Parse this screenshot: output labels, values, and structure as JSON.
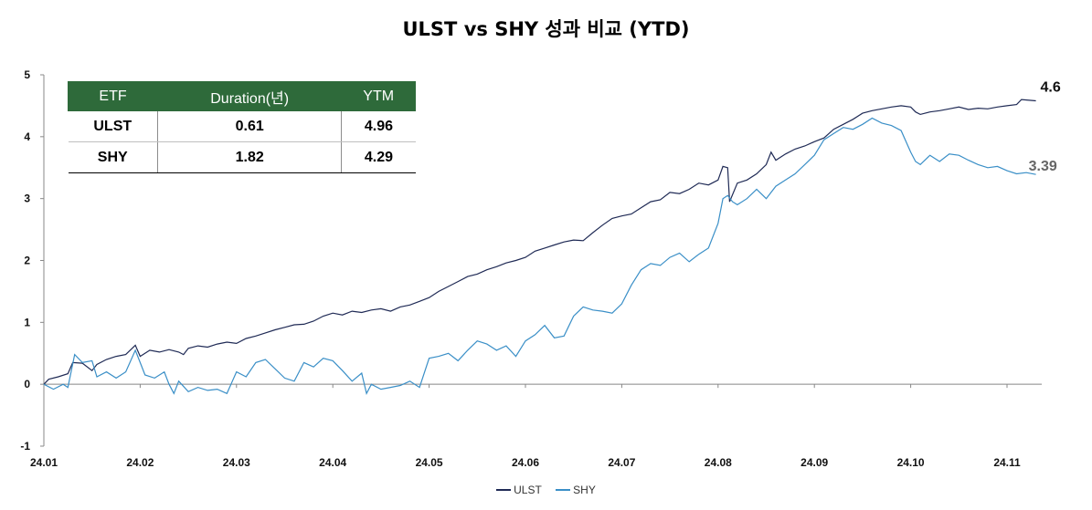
{
  "chart_data": {
    "type": "line",
    "title": "ULST vs SHY 성과 비교 (YTD)",
    "xlabel": "",
    "ylabel": "",
    "ylim": [
      -1,
      5
    ],
    "yticks": [
      "-1",
      "0",
      "1",
      "2",
      "3",
      "4",
      "5"
    ],
    "xticks": [
      "24.01",
      "24.02",
      "24.03",
      "24.04",
      "24.05",
      "24.06",
      "24.07",
      "24.08",
      "24.09",
      "24.10",
      "24.11"
    ],
    "series": [
      {
        "name": "ULST",
        "color": "#1f2a55",
        "end_label": "4.6",
        "points": [
          [
            0.0,
            0.0
          ],
          [
            0.05,
            0.08
          ],
          [
            0.15,
            0.12
          ],
          [
            0.25,
            0.17
          ],
          [
            0.3,
            0.35
          ],
          [
            0.4,
            0.34
          ],
          [
            0.5,
            0.22
          ],
          [
            0.55,
            0.32
          ],
          [
            0.65,
            0.4
          ],
          [
            0.75,
            0.45
          ],
          [
            0.85,
            0.48
          ],
          [
            0.95,
            0.63
          ],
          [
            1.0,
            0.45
          ],
          [
            1.1,
            0.55
          ],
          [
            1.2,
            0.52
          ],
          [
            1.3,
            0.56
          ],
          [
            1.4,
            0.52
          ],
          [
            1.45,
            0.48
          ],
          [
            1.5,
            0.58
          ],
          [
            1.6,
            0.62
          ],
          [
            1.7,
            0.6
          ],
          [
            1.8,
            0.65
          ],
          [
            1.9,
            0.68
          ],
          [
            2.0,
            0.66
          ],
          [
            2.1,
            0.74
          ],
          [
            2.2,
            0.78
          ],
          [
            2.3,
            0.83
          ],
          [
            2.4,
            0.88
          ],
          [
            2.5,
            0.92
          ],
          [
            2.6,
            0.96
          ],
          [
            2.7,
            0.97
          ],
          [
            2.8,
            1.02
          ],
          [
            2.9,
            1.1
          ],
          [
            3.0,
            1.15
          ],
          [
            3.1,
            1.12
          ],
          [
            3.2,
            1.18
          ],
          [
            3.3,
            1.16
          ],
          [
            3.4,
            1.2
          ],
          [
            3.5,
            1.22
          ],
          [
            3.6,
            1.18
          ],
          [
            3.7,
            1.25
          ],
          [
            3.8,
            1.28
          ],
          [
            3.9,
            1.34
          ],
          [
            4.0,
            1.4
          ],
          [
            4.1,
            1.5
          ],
          [
            4.2,
            1.58
          ],
          [
            4.3,
            1.66
          ],
          [
            4.4,
            1.74
          ],
          [
            4.5,
            1.78
          ],
          [
            4.6,
            1.85
          ],
          [
            4.7,
            1.9
          ],
          [
            4.8,
            1.96
          ],
          [
            4.9,
            2.0
          ],
          [
            5.0,
            2.05
          ],
          [
            5.1,
            2.15
          ],
          [
            5.2,
            2.2
          ],
          [
            5.3,
            2.25
          ],
          [
            5.4,
            2.3
          ],
          [
            5.5,
            2.33
          ],
          [
            5.6,
            2.32
          ],
          [
            5.7,
            2.45
          ],
          [
            5.8,
            2.57
          ],
          [
            5.9,
            2.68
          ],
          [
            6.0,
            2.72
          ],
          [
            6.1,
            2.75
          ],
          [
            6.2,
            2.85
          ],
          [
            6.3,
            2.95
          ],
          [
            6.4,
            2.98
          ],
          [
            6.5,
            3.1
          ],
          [
            6.6,
            3.08
          ],
          [
            6.7,
            3.15
          ],
          [
            6.8,
            3.25
          ],
          [
            6.9,
            3.22
          ],
          [
            7.0,
            3.3
          ],
          [
            7.05,
            3.52
          ],
          [
            7.1,
            3.5
          ],
          [
            7.12,
            2.95
          ],
          [
            7.2,
            3.25
          ],
          [
            7.3,
            3.3
          ],
          [
            7.4,
            3.4
          ],
          [
            7.5,
            3.55
          ],
          [
            7.55,
            3.75
          ],
          [
            7.6,
            3.62
          ],
          [
            7.7,
            3.72
          ],
          [
            7.8,
            3.8
          ],
          [
            7.9,
            3.85
          ],
          [
            8.0,
            3.92
          ],
          [
            8.1,
            3.98
          ],
          [
            8.2,
            4.12
          ],
          [
            8.3,
            4.2
          ],
          [
            8.4,
            4.28
          ],
          [
            8.5,
            4.38
          ],
          [
            8.6,
            4.42
          ],
          [
            8.7,
            4.45
          ],
          [
            8.8,
            4.48
          ],
          [
            8.9,
            4.5
          ],
          [
            9.0,
            4.48
          ],
          [
            9.05,
            4.4
          ],
          [
            9.1,
            4.36
          ],
          [
            9.2,
            4.4
          ],
          [
            9.3,
            4.42
          ],
          [
            9.4,
            4.45
          ],
          [
            9.5,
            4.48
          ],
          [
            9.6,
            4.44
          ],
          [
            9.7,
            4.46
          ],
          [
            9.8,
            4.45
          ],
          [
            9.9,
            4.48
          ],
          [
            10.0,
            4.5
          ],
          [
            10.1,
            4.52
          ],
          [
            10.15,
            4.6
          ],
          [
            10.3,
            4.58
          ]
        ]
      },
      {
        "name": "SHY",
        "color": "#3a8fc7",
        "end_label": "3.39",
        "points": [
          [
            0.0,
            0.0
          ],
          [
            0.1,
            -0.08
          ],
          [
            0.2,
            0.0
          ],
          [
            0.25,
            -0.05
          ],
          [
            0.32,
            0.48
          ],
          [
            0.4,
            0.35
          ],
          [
            0.5,
            0.38
          ],
          [
            0.55,
            0.12
          ],
          [
            0.65,
            0.2
          ],
          [
            0.75,
            0.1
          ],
          [
            0.85,
            0.2
          ],
          [
            0.95,
            0.55
          ],
          [
            1.0,
            0.35
          ],
          [
            1.05,
            0.15
          ],
          [
            1.15,
            0.1
          ],
          [
            1.25,
            0.2
          ],
          [
            1.3,
            0.0
          ],
          [
            1.35,
            -0.15
          ],
          [
            1.4,
            0.05
          ],
          [
            1.5,
            -0.12
          ],
          [
            1.6,
            -0.05
          ],
          [
            1.7,
            -0.1
          ],
          [
            1.8,
            -0.08
          ],
          [
            1.9,
            -0.15
          ],
          [
            2.0,
            0.2
          ],
          [
            2.1,
            0.12
          ],
          [
            2.2,
            0.35
          ],
          [
            2.3,
            0.4
          ],
          [
            2.4,
            0.25
          ],
          [
            2.5,
            0.1
          ],
          [
            2.6,
            0.05
          ],
          [
            2.7,
            0.35
          ],
          [
            2.8,
            0.28
          ],
          [
            2.9,
            0.42
          ],
          [
            3.0,
            0.38
          ],
          [
            3.1,
            0.22
          ],
          [
            3.2,
            0.05
          ],
          [
            3.3,
            0.18
          ],
          [
            3.35,
            -0.15
          ],
          [
            3.4,
            0.0
          ],
          [
            3.5,
            -0.08
          ],
          [
            3.6,
            -0.05
          ],
          [
            3.7,
            -0.02
          ],
          [
            3.8,
            0.05
          ],
          [
            3.9,
            -0.05
          ],
          [
            4.0,
            0.42
          ],
          [
            4.1,
            0.45
          ],
          [
            4.2,
            0.5
          ],
          [
            4.3,
            0.38
          ],
          [
            4.4,
            0.55
          ],
          [
            4.5,
            0.7
          ],
          [
            4.6,
            0.65
          ],
          [
            4.7,
            0.55
          ],
          [
            4.8,
            0.62
          ],
          [
            4.9,
            0.45
          ],
          [
            5.0,
            0.7
          ],
          [
            5.1,
            0.8
          ],
          [
            5.2,
            0.95
          ],
          [
            5.3,
            0.75
          ],
          [
            5.4,
            0.78
          ],
          [
            5.5,
            1.1
          ],
          [
            5.6,
            1.25
          ],
          [
            5.7,
            1.2
          ],
          [
            5.8,
            1.18
          ],
          [
            5.9,
            1.15
          ],
          [
            6.0,
            1.3
          ],
          [
            6.1,
            1.6
          ],
          [
            6.2,
            1.85
          ],
          [
            6.3,
            1.95
          ],
          [
            6.4,
            1.92
          ],
          [
            6.5,
            2.05
          ],
          [
            6.6,
            2.12
          ],
          [
            6.7,
            1.98
          ],
          [
            6.8,
            2.1
          ],
          [
            6.9,
            2.2
          ],
          [
            7.0,
            2.6
          ],
          [
            7.05,
            3.0
          ],
          [
            7.1,
            3.05
          ],
          [
            7.15,
            2.95
          ],
          [
            7.2,
            2.9
          ],
          [
            7.3,
            3.0
          ],
          [
            7.4,
            3.15
          ],
          [
            7.5,
            3.0
          ],
          [
            7.6,
            3.2
          ],
          [
            7.7,
            3.3
          ],
          [
            7.8,
            3.4
          ],
          [
            7.9,
            3.55
          ],
          [
            8.0,
            3.7
          ],
          [
            8.1,
            3.95
          ],
          [
            8.2,
            4.05
          ],
          [
            8.3,
            4.15
          ],
          [
            8.4,
            4.12
          ],
          [
            8.5,
            4.2
          ],
          [
            8.6,
            4.3
          ],
          [
            8.7,
            4.22
          ],
          [
            8.8,
            4.18
          ],
          [
            8.9,
            4.1
          ],
          [
            9.0,
            3.75
          ],
          [
            9.05,
            3.6
          ],
          [
            9.1,
            3.55
          ],
          [
            9.2,
            3.7
          ],
          [
            9.3,
            3.6
          ],
          [
            9.4,
            3.72
          ],
          [
            9.5,
            3.7
          ],
          [
            9.6,
            3.62
          ],
          [
            9.7,
            3.55
          ],
          [
            9.8,
            3.5
          ],
          [
            9.9,
            3.52
          ],
          [
            10.0,
            3.45
          ],
          [
            10.1,
            3.4
          ],
          [
            10.2,
            3.42
          ],
          [
            10.3,
            3.39
          ]
        ]
      }
    ]
  },
  "table": {
    "headers": [
      "ETF",
      "Duration(년)",
      "YTM"
    ],
    "rows": [
      [
        "ULST",
        "0.61",
        "4.96"
      ],
      [
        "SHY",
        "1.82",
        "4.29"
      ]
    ],
    "header_color": "#2e6a3a"
  },
  "legend": {
    "items": [
      {
        "name": "ULST",
        "color": "#1f2a55"
      },
      {
        "name": "SHY",
        "color": "#3a8fc7"
      }
    ]
  }
}
